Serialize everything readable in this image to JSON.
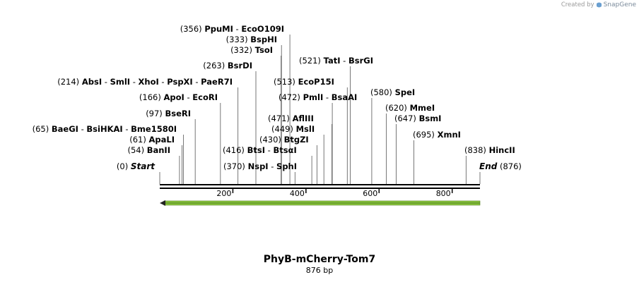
{
  "credit": {
    "prefix": "Created by",
    "brand": "SnapGene"
  },
  "title": "PhyB-mCherry-Tom7",
  "subtitle": "876 bp",
  "total_bp": 876,
  "ruler_ticks": [
    200,
    400,
    600,
    800
  ],
  "feature_color": "#8cc63f",
  "start_label": {
    "pos": "(0)",
    "name": "Start"
  },
  "end_label": {
    "pos": "(876)",
    "name": "End"
  },
  "sites": [
    {
      "pos": 54,
      "names": [
        "BanII"
      ]
    },
    {
      "pos": 61,
      "names": [
        "ApaLI"
      ]
    },
    {
      "pos": 65,
      "names": [
        "BaeGI",
        "BsiHKAI",
        "Bme1580I"
      ]
    },
    {
      "pos": 97,
      "names": [
        "BseRI"
      ]
    },
    {
      "pos": 166,
      "names": [
        "ApoI",
        "EcoRI"
      ]
    },
    {
      "pos": 214,
      "names": [
        "AbsI",
        "SmlI",
        "XhoI",
        "PspXI",
        "PaeR7I"
      ]
    },
    {
      "pos": 263,
      "names": [
        "BsrDI"
      ]
    },
    {
      "pos": 332,
      "names": [
        "TsoI"
      ]
    },
    {
      "pos": 333,
      "names": [
        "BspHI"
      ]
    },
    {
      "pos": 356,
      "names": [
        "PpuMI",
        "EcoO109I"
      ]
    },
    {
      "pos": 370,
      "names": [
        "NspI",
        "SphI"
      ]
    },
    {
      "pos": 416,
      "names": [
        "BtsI",
        "BtsαI"
      ]
    },
    {
      "pos": 430,
      "names": [
        "BtgZI"
      ]
    },
    {
      "pos": 449,
      "names": [
        "MslI"
      ]
    },
    {
      "pos": 471,
      "names": [
        "AflIII"
      ]
    },
    {
      "pos": 472,
      "names": [
        "PmlI",
        "BsaAI"
      ]
    },
    {
      "pos": 513,
      "names": [
        "EcoP15I"
      ]
    },
    {
      "pos": 521,
      "names": [
        "TatI",
        "BsrGI"
      ]
    },
    {
      "pos": 580,
      "names": [
        "SpeI"
      ]
    },
    {
      "pos": 620,
      "names": [
        "MmeI"
      ]
    },
    {
      "pos": 647,
      "names": [
        "BsmI"
      ]
    },
    {
      "pos": 695,
      "names": [
        "XmnI"
      ]
    },
    {
      "pos": 838,
      "names": [
        "HincII"
      ]
    }
  ]
}
